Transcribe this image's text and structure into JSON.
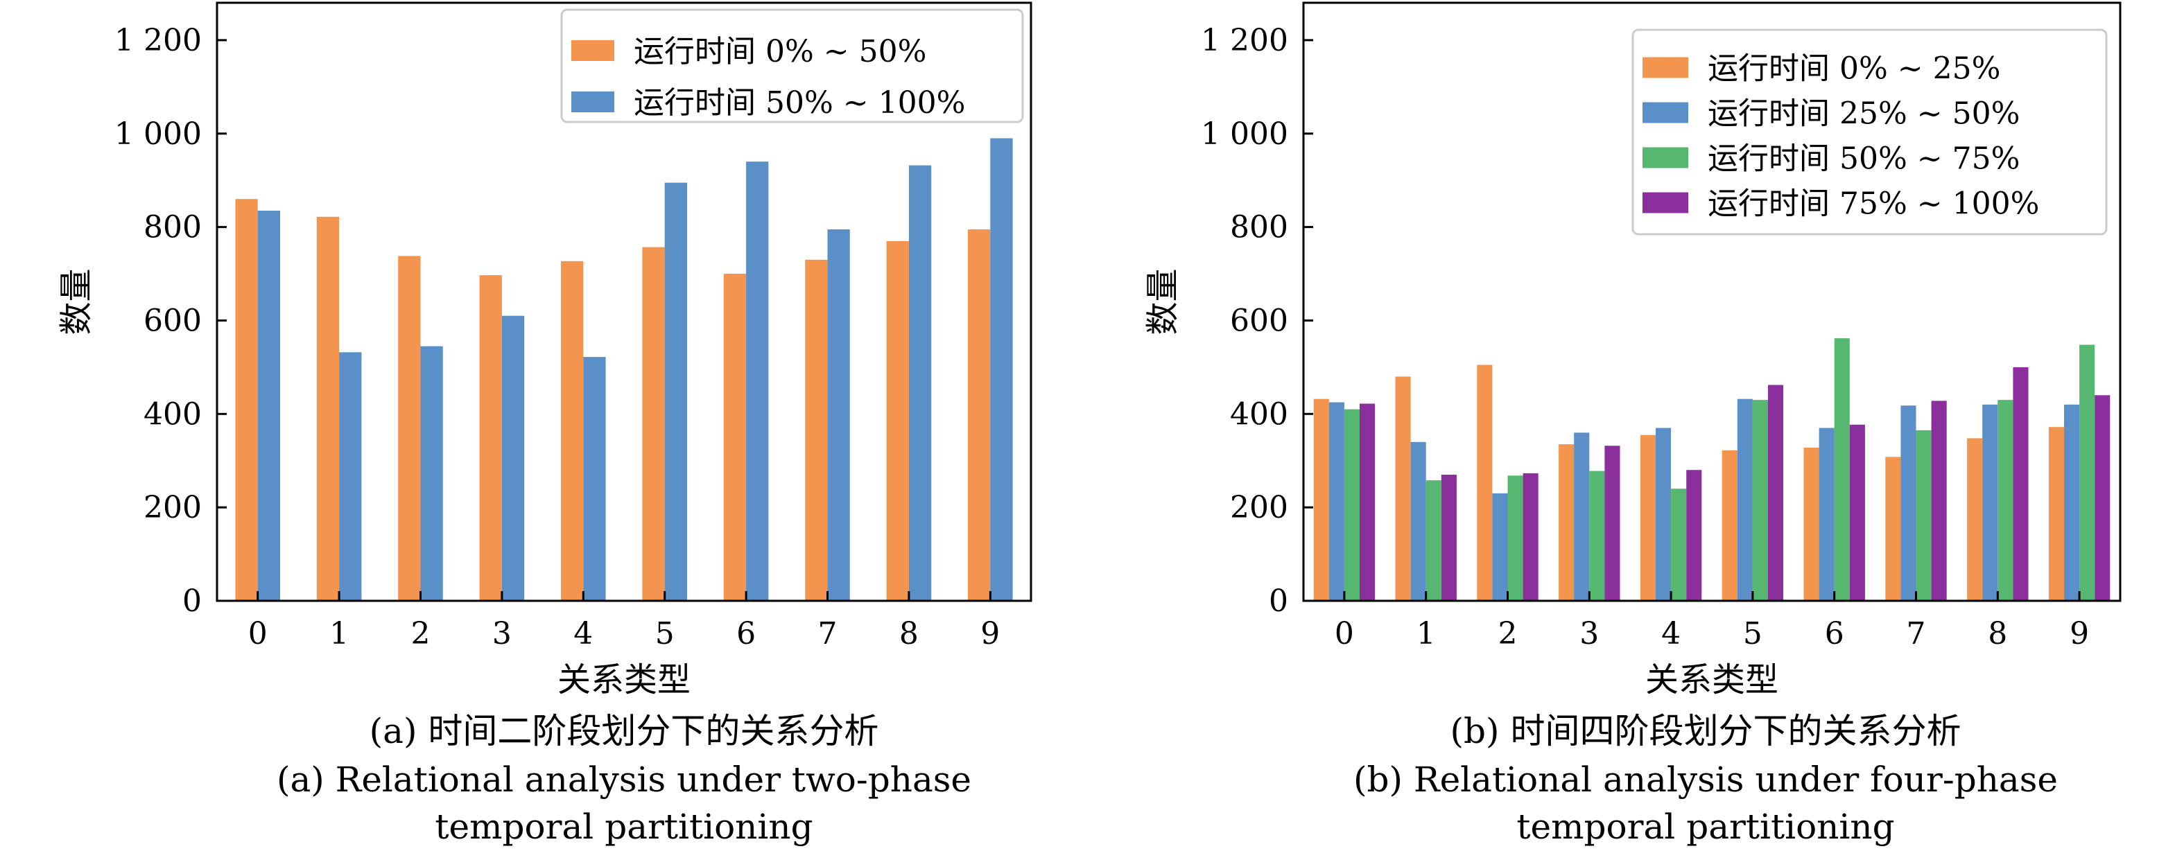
{
  "chart_data": [
    {
      "type": "bar",
      "categories": [
        "0",
        "1",
        "2",
        "3",
        "4",
        "5",
        "6",
        "7",
        "8",
        "9"
      ],
      "xlabel": "关系类型",
      "ylabel": "数量",
      "ylim": [
        0,
        1280
      ],
      "yticks": [
        0,
        200,
        400,
        600,
        800,
        1000,
        1200
      ],
      "ytick_labels": [
        "0",
        "200",
        "400",
        "600",
        "800",
        "1 000",
        "1 200"
      ],
      "legend_placement": "top-right",
      "series": [
        {
          "name": "运行时间 0% ~ 50%",
          "color": "#F4954F",
          "values": [
            860,
            822,
            738,
            697,
            727,
            757,
            700,
            730,
            770,
            795
          ]
        },
        {
          "name": "运行时间 50% ~ 100%",
          "color": "#5B8FC7",
          "values": [
            835,
            532,
            545,
            610,
            522,
            895,
            940,
            795,
            932,
            990
          ]
        }
      ],
      "caption_cn": "(a) 时间二阶段划分下的关系分析",
      "caption_en_1": "(a) Relational analysis under two-phase",
      "caption_en_2": "temporal partitioning"
    },
    {
      "type": "bar",
      "categories": [
        "0",
        "1",
        "2",
        "3",
        "4",
        "5",
        "6",
        "7",
        "8",
        "9"
      ],
      "xlabel": "关系类型",
      "ylabel": "数量",
      "ylim": [
        0,
        1280
      ],
      "yticks": [
        0,
        200,
        400,
        600,
        800,
        1000,
        1200
      ],
      "ytick_labels": [
        "0",
        "200",
        "400",
        "600",
        "800",
        "1 000",
        "1 200"
      ],
      "legend_placement": "top-right",
      "series": [
        {
          "name": "运行时间 0% ~ 25%",
          "color": "#F4954F",
          "values": [
            432,
            480,
            505,
            335,
            355,
            322,
            328,
            308,
            348,
            372
          ]
        },
        {
          "name": "运行时间 25% ~ 50%",
          "color": "#5B8FC7",
          "values": [
            425,
            340,
            230,
            360,
            370,
            432,
            370,
            418,
            420,
            420
          ]
        },
        {
          "name": "运行时间 50% ~ 75%",
          "color": "#56B870",
          "values": [
            410,
            258,
            268,
            278,
            240,
            430,
            562,
            365,
            430,
            548
          ]
        },
        {
          "name": "运行时间 75% ~ 100%",
          "color": "#8B2F9C",
          "values": [
            422,
            270,
            273,
            332,
            280,
            462,
            377,
            428,
            500,
            440
          ]
        }
      ],
      "caption_cn": "(b) 时间四阶段划分下的关系分析",
      "caption_en_1": "(b) Relational analysis under four-phase",
      "caption_en_2": "temporal partitioning"
    }
  ]
}
